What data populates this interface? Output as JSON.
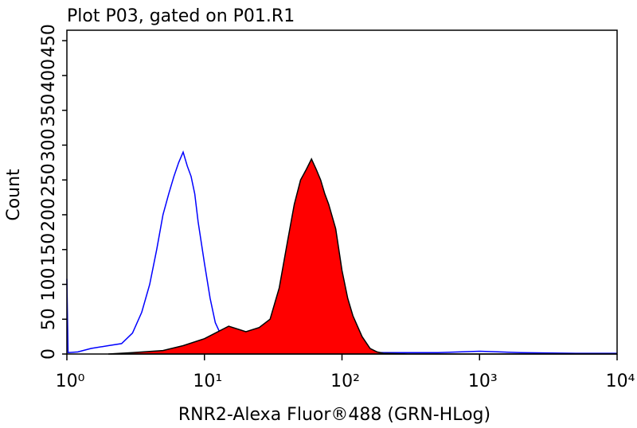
{
  "chart_data": {
    "type": "histogram-overlay",
    "title": "Plot P03, gated on P01.R1",
    "x_label": "RNR2-Alexa Fluor®488 (GRN-HLog)",
    "y_label": "Count",
    "x_scale": "log",
    "xlim": [
      1,
      10000
    ],
    "xticks": [
      {
        "value": 1,
        "label": "10⁰"
      },
      {
        "value": 10,
        "label": "10¹"
      },
      {
        "value": 100,
        "label": "10²"
      },
      {
        "value": 1000,
        "label": "10³"
      },
      {
        "value": 10000,
        "label": "10⁴"
      }
    ],
    "ylim": [
      0,
      465
    ],
    "yticks": [
      0,
      50,
      100,
      150,
      200,
      250,
      300,
      350,
      400,
      450
    ],
    "series": [
      {
        "color": "#0000ff",
        "filled": false,
        "x": [
          1,
          1.02,
          1.2,
          1.5,
          2,
          2.5,
          3,
          3.5,
          4,
          4.5,
          5,
          5.5,
          6,
          6.5,
          7,
          7.5,
          8,
          8.5,
          9,
          10,
          11,
          12,
          13,
          14,
          16,
          20,
          30,
          50,
          100,
          200,
          500,
          1000,
          2000,
          5000,
          10000
        ],
        "values": [
          108,
          2,
          3,
          8,
          12,
          15,
          30,
          60,
          100,
          150,
          200,
          230,
          255,
          275,
          290,
          270,
          255,
          230,
          190,
          130,
          80,
          45,
          30,
          25,
          15,
          10,
          5,
          3,
          3,
          2,
          2,
          4,
          2,
          1,
          1
        ]
      },
      {
        "color": "#ff0000",
        "filled": true,
        "x": [
          2,
          3,
          5,
          7,
          10,
          12,
          15,
          18,
          20,
          25,
          30,
          35,
          40,
          45,
          50,
          55,
          60,
          65,
          70,
          75,
          80,
          90,
          100,
          110,
          120,
          140,
          160,
          180,
          200,
          300,
          10000
        ],
        "values": [
          0,
          2,
          5,
          12,
          22,
          30,
          40,
          35,
          32,
          38,
          50,
          95,
          160,
          215,
          250,
          265,
          280,
          265,
          250,
          230,
          215,
          180,
          120,
          80,
          55,
          25,
          8,
          3,
          1,
          0,
          0
        ]
      }
    ]
  }
}
